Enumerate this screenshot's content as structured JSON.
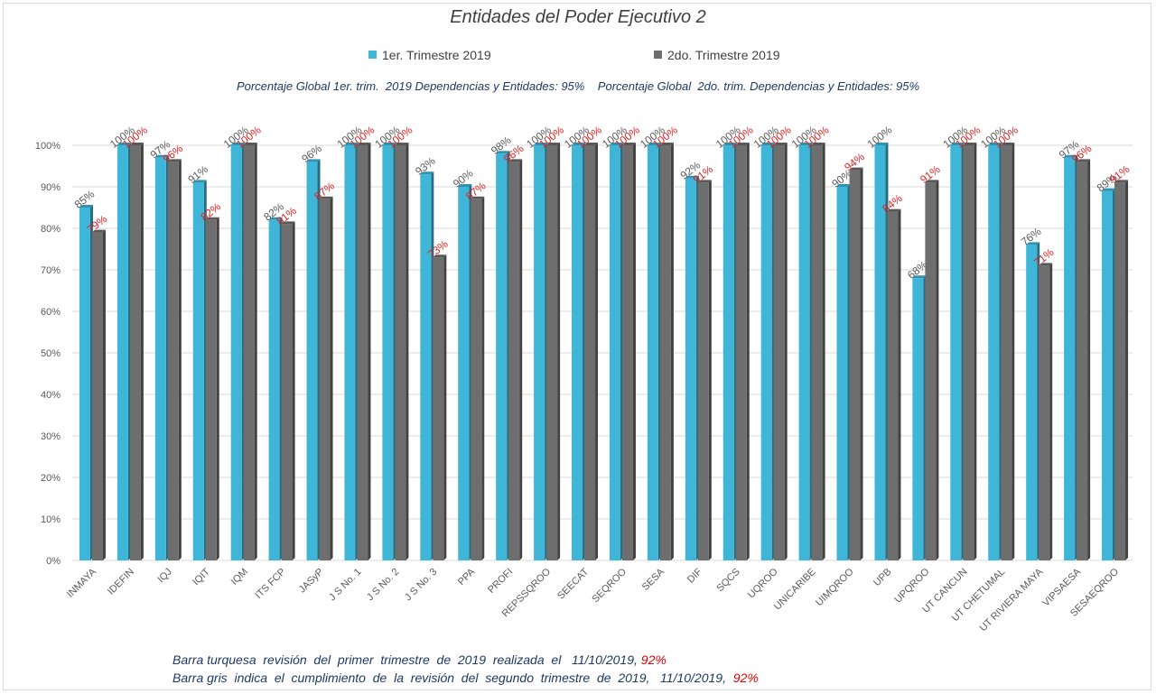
{
  "chart_data": {
    "type": "bar",
    "title": "Entidades del Poder Ejecutivo 2",
    "categories": [
      "INMAYA",
      "IDEFIN",
      "IQJ",
      "IQIT",
      "IQM",
      "ITS FCP",
      "JASyP",
      "J S No. 1",
      "J S No. 2",
      "J S No. 3",
      "PPA",
      "PROFI",
      "REPSSQROO",
      "SEECAT",
      "SEQROO",
      "SESA",
      "DIF",
      "SQCS",
      "UQROO",
      "UNICARIBE",
      "UIMQROO",
      "UPB",
      "UPQROO",
      "UT CANCUN",
      "UT CHETUMAL",
      "UT RIVIERA MAYA",
      "VIPSAESA",
      "SESAEQROO"
    ],
    "series": [
      {
        "name": "1er. Trimestre 2019",
        "color": "#3fb6d8",
        "label_color": "#595959",
        "values": [
          85,
          100,
          97,
          91,
          100,
          82,
          96,
          100,
          100,
          93,
          90,
          98,
          100,
          100,
          100,
          100,
          92,
          100,
          100,
          100,
          90,
          100,
          68,
          100,
          100,
          76,
          97,
          89
        ]
      },
      {
        "name": "2do. Trimestre 2019",
        "color": "#6e6e6e",
        "label_color": "#e02020",
        "values": [
          79,
          100,
          96,
          82,
          100,
          81,
          87,
          100,
          100,
          73,
          87,
          96,
          100,
          100,
          100,
          100,
          91,
          100,
          100,
          100,
          94,
          84,
          91,
          100,
          100,
          71,
          96,
          91
        ]
      }
    ],
    "yticks": [
      "0%",
      "10%",
      "20%",
      "30%",
      "40%",
      "50%",
      "60%",
      "70%",
      "80%",
      "90%",
      "100%"
    ],
    "ylim": [
      0,
      100
    ],
    "grid": true,
    "legend": "top-center"
  },
  "global_text": "Porcentaje Global 1er. trim.  2019 Dependencias y Entidades: 95%    Porcentaje Global  2do. trim. Dependencias y Entidades: 95%",
  "footnotes": [
    {
      "text": "Barra turquesa  revisión  del  primer  trimestre  de  2019  realizada  el   11/10/2019, ",
      "pct": "92%"
    },
    {
      "text": "Barra gris  indica  el  cumplimiento  de  la  revisión  del  segundo  trimestre  de  2019,   11/10/2019,  ",
      "pct": "92%"
    }
  ]
}
